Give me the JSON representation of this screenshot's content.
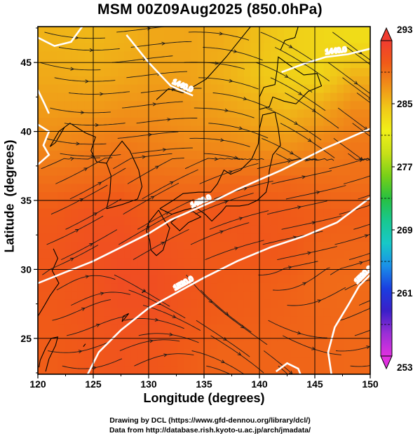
{
  "chart_data": {
    "type": "heatmap",
    "title": "MSM 00Z09Aug2025 (850.0hPa)",
    "xlabel": "Longitude (degrees)",
    "ylabel": "Latitude  (degrees)",
    "xlim": [
      120,
      150
    ],
    "ylim": [
      22.4,
      47.6
    ],
    "xticks": [
      120,
      125,
      130,
      135,
      140,
      145,
      150
    ],
    "yticks": [
      25,
      30,
      35,
      40,
      45
    ],
    "grid": true,
    "colorbar": {
      "min": 253,
      "max": 293,
      "ticks": [
        253,
        261,
        269,
        277,
        285,
        293
      ],
      "extend": "both",
      "colors": [
        "#e030e0",
        "#9b2fd6",
        "#3a1fc8",
        "#1a3ee0",
        "#1a90e8",
        "#18c8c8",
        "#18c890",
        "#28c040",
        "#78d018",
        "#c8e018",
        "#f0f018",
        "#f0c818",
        "#f09018",
        "#f05a18",
        "#f03c30"
      ]
    },
    "temperature_field_K": [
      {
        "lat": 46.5,
        "values": [
          285.5,
          285.3,
          285.6,
          286.1,
          286.2,
          285.9,
          285.0,
          284.1,
          283.4,
          283.0
        ]
      },
      {
        "lat": 44.0,
        "values": [
          286.0,
          285.8,
          286.1,
          286.5,
          286.4,
          285.7,
          284.7,
          283.8,
          283.6,
          285.6
        ]
      },
      {
        "lat": 41.5,
        "values": [
          286.7,
          286.8,
          287.2,
          287.3,
          287.0,
          286.5,
          285.9,
          285.3,
          286.2,
          287.7
        ]
      },
      {
        "lat": 39.0,
        "values": [
          287.7,
          288.2,
          288.5,
          288.1,
          287.7,
          287.6,
          287.1,
          287.0,
          287.9,
          288.6
        ]
      },
      {
        "lat": 36.5,
        "values": [
          289.0,
          289.2,
          289.5,
          289.1,
          289.0,
          289.1,
          289.3,
          289.4,
          289.1,
          289.0
        ]
      },
      {
        "lat": 34.0,
        "values": [
          290.2,
          290.8,
          290.8,
          290.0,
          290.2,
          290.5,
          290.4,
          290.2,
          289.9,
          289.9
        ]
      },
      {
        "lat": 31.5,
        "values": [
          290.5,
          291.0,
          291.2,
          291.0,
          290.5,
          290.2,
          290.5,
          290.3,
          289.6,
          289.5
        ]
      },
      {
        "lat": 29.0,
        "values": [
          290.3,
          290.6,
          291.4,
          291.3,
          290.6,
          290.2,
          290.0,
          289.8,
          289.3,
          289.2
        ]
      },
      {
        "lat": 26.5,
        "values": [
          290.2,
          290.6,
          290.9,
          291.0,
          290.4,
          290.0,
          289.9,
          289.7,
          289.5,
          289.4
        ]
      },
      {
        "lat": 24.0,
        "values": [
          290.0,
          290.4,
          290.7,
          290.5,
          290.0,
          289.6,
          289.6,
          289.6,
          289.5,
          289.4
        ]
      }
    ],
    "contour_labels": [
      "1440.0",
      "1440.0",
      "1480.0",
      "1520.0",
      "1520.0"
    ]
  },
  "credits": {
    "line1": "Drawing by DCL (https://www.gfd-dennou.org/library/dcl/)",
    "line2": "Data from http://database.rish.kyoto-u.ac.jp/arch/jmadata/"
  }
}
